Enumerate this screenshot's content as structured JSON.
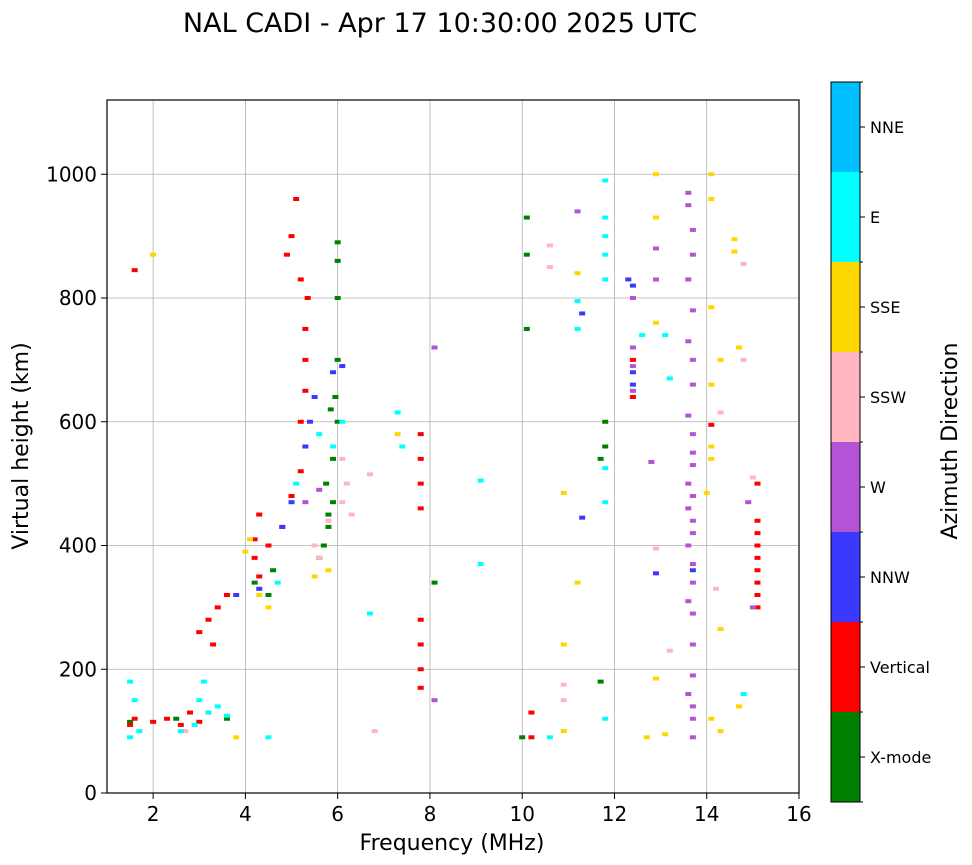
{
  "chart_data": {
    "type": "scatter",
    "title": "NAL CADI - Apr 17 10:30:00 2025 UTC",
    "xlabel": "Frequency (MHz)",
    "ylabel": "Virtual height (km)",
    "xlim": [
      1.0,
      16.0
    ],
    "ylim": [
      0,
      1120
    ],
    "xticks": [
      2,
      4,
      6,
      8,
      10,
      12,
      14,
      16
    ],
    "yticks": [
      0,
      200,
      400,
      600,
      800,
      1000
    ],
    "grid": true,
    "colorbar": {
      "label": "Azimuth Direction",
      "categories": [
        "X-mode",
        "Vertical",
        "NNW",
        "W",
        "SSW",
        "SSE",
        "E",
        "NNE"
      ],
      "colors": {
        "X-mode": "#008000",
        "Vertical": "#ff0000",
        "NNW": "#3a3aff",
        "W": "#b553d6",
        "SSW": "#ffb6c1",
        "SSE": "#ffd700",
        "E": "#00ffff",
        "NNE": "#00bfff"
      }
    },
    "series": [
      {
        "name": "X-mode",
        "points": [
          [
            5.8,
            430
          ],
          [
            5.9,
            470
          ],
          [
            5.7,
            400
          ],
          [
            5.9,
            540
          ],
          [
            6.0,
            600
          ],
          [
            5.95,
            640
          ],
          [
            6.0,
            700
          ],
          [
            6.0,
            800
          ],
          [
            5.85,
            620
          ],
          [
            5.6,
            380
          ],
          [
            5.8,
            450
          ],
          [
            5.75,
            500
          ],
          [
            10.1,
            930
          ],
          [
            10.1,
            870
          ],
          [
            10.1,
            750
          ],
          [
            10.0,
            90
          ],
          [
            11.8,
            560
          ],
          [
            11.8,
            600
          ],
          [
            11.7,
            540
          ],
          [
            11.7,
            180
          ],
          [
            8.1,
            340
          ],
          [
            6.0,
            860
          ],
          [
            6.0,
            890
          ],
          [
            4.2,
            340
          ],
          [
            4.6,
            360
          ],
          [
            4.5,
            320
          ],
          [
            3.6,
            120
          ],
          [
            2.5,
            120
          ],
          [
            1.5,
            115
          ]
        ]
      },
      {
        "name": "Vertical",
        "points": [
          [
            1.5,
            110
          ],
          [
            1.6,
            120
          ],
          [
            2.0,
            115
          ],
          [
            2.3,
            120
          ],
          [
            2.6,
            110
          ],
          [
            2.8,
            130
          ],
          [
            3.0,
            115
          ],
          [
            3.2,
            130
          ],
          [
            3.0,
            260
          ],
          [
            3.2,
            280
          ],
          [
            3.3,
            240
          ],
          [
            3.4,
            300
          ],
          [
            3.6,
            320
          ],
          [
            4.2,
            410
          ],
          [
            4.3,
            450
          ],
          [
            4.5,
            400
          ],
          [
            4.8,
            430
          ],
          [
            5.0,
            480
          ],
          [
            5.2,
            520
          ],
          [
            5.2,
            600
          ],
          [
            5.3,
            650
          ],
          [
            5.3,
            700
          ],
          [
            5.3,
            750
          ],
          [
            5.35,
            800
          ],
          [
            5.2,
            830
          ],
          [
            5.0,
            900
          ],
          [
            4.9,
            870
          ],
          [
            5.1,
            960
          ],
          [
            7.8,
            580
          ],
          [
            7.8,
            540
          ],
          [
            7.8,
            500
          ],
          [
            7.8,
            460
          ],
          [
            7.8,
            280
          ],
          [
            7.8,
            240
          ],
          [
            7.8,
            200
          ],
          [
            7.8,
            170
          ],
          [
            14.1,
            595
          ],
          [
            15.1,
            300
          ],
          [
            15.1,
            320
          ],
          [
            15.1,
            340
          ],
          [
            15.1,
            360
          ],
          [
            15.1,
            380
          ],
          [
            15.1,
            400
          ],
          [
            15.1,
            420
          ],
          [
            15.1,
            440
          ],
          [
            15.1,
            500
          ],
          [
            12.4,
            700
          ],
          [
            12.4,
            640
          ],
          [
            1.6,
            845
          ],
          [
            10.2,
            130
          ],
          [
            10.2,
            90
          ],
          [
            4.2,
            380
          ],
          [
            4.3,
            350
          ]
        ]
      },
      {
        "name": "NNW",
        "points": [
          [
            5.5,
            640
          ],
          [
            5.4,
            600
          ],
          [
            5.3,
            560
          ],
          [
            5.0,
            470
          ],
          [
            4.8,
            430
          ],
          [
            5.9,
            680
          ],
          [
            6.1,
            690
          ],
          [
            12.4,
            680
          ],
          [
            12.4,
            660
          ],
          [
            12.4,
            820
          ],
          [
            12.3,
            830
          ],
          [
            11.3,
            445
          ],
          [
            11.3,
            775
          ],
          [
            12.9,
            355
          ],
          [
            13.7,
            360
          ],
          [
            3.8,
            320
          ],
          [
            4.3,
            330
          ]
        ]
      },
      {
        "name": "W",
        "points": [
          [
            5.6,
            490
          ],
          [
            5.3,
            470
          ],
          [
            12.4,
            800
          ],
          [
            12.4,
            720
          ],
          [
            12.4,
            690
          ],
          [
            12.4,
            650
          ],
          [
            13.6,
            970
          ],
          [
            13.6,
            950
          ],
          [
            13.7,
            910
          ],
          [
            13.7,
            870
          ],
          [
            13.6,
            830
          ],
          [
            13.7,
            780
          ],
          [
            13.6,
            730
          ],
          [
            13.7,
            700
          ],
          [
            13.7,
            660
          ],
          [
            13.6,
            610
          ],
          [
            13.7,
            580
          ],
          [
            13.7,
            550
          ],
          [
            13.7,
            530
          ],
          [
            13.6,
            500
          ],
          [
            13.7,
            480
          ],
          [
            13.6,
            460
          ],
          [
            13.7,
            440
          ],
          [
            13.7,
            420
          ],
          [
            13.6,
            400
          ],
          [
            13.7,
            370
          ],
          [
            13.7,
            340
          ],
          [
            13.6,
            310
          ],
          [
            13.7,
            290
          ],
          [
            13.7,
            240
          ],
          [
            13.7,
            190
          ],
          [
            13.6,
            160
          ],
          [
            13.7,
            140
          ],
          [
            13.7,
            120
          ],
          [
            13.7,
            90
          ],
          [
            12.9,
            880
          ],
          [
            12.9,
            830
          ],
          [
            12.8,
            535
          ],
          [
            11.2,
            940
          ],
          [
            8.1,
            720
          ],
          [
            8.1,
            150
          ],
          [
            14.9,
            470
          ],
          [
            15.0,
            300
          ]
        ]
      },
      {
        "name": "SSW",
        "points": [
          [
            5.6,
            380
          ],
          [
            5.5,
            400
          ],
          [
            5.8,
            440
          ],
          [
            6.1,
            470
          ],
          [
            6.3,
            450
          ],
          [
            6.2,
            500
          ],
          [
            6.1,
            540
          ],
          [
            6.7,
            515
          ],
          [
            10.6,
            885
          ],
          [
            10.6,
            850
          ],
          [
            12.9,
            395
          ],
          [
            13.2,
            230
          ],
          [
            14.2,
            330
          ],
          [
            14.3,
            615
          ],
          [
            14.8,
            855
          ],
          [
            14.8,
            700
          ],
          [
            15.0,
            510
          ],
          [
            10.9,
            175
          ],
          [
            10.9,
            150
          ],
          [
            2.7,
            100
          ],
          [
            6.8,
            100
          ]
        ]
      },
      {
        "name": "SSE",
        "points": [
          [
            5.5,
            350
          ],
          [
            5.8,
            360
          ],
          [
            4.3,
            320
          ],
          [
            4.5,
            300
          ],
          [
            4.1,
            410
          ],
          [
            4.0,
            390
          ],
          [
            12.9,
            1000
          ],
          [
            12.9,
            930
          ],
          [
            12.9,
            760
          ],
          [
            13.2,
            670
          ],
          [
            14.1,
            1000
          ],
          [
            14.1,
            960
          ],
          [
            14.1,
            785
          ],
          [
            14.1,
            660
          ],
          [
            14.0,
            485
          ],
          [
            14.1,
            560
          ],
          [
            14.1,
            540
          ],
          [
            14.3,
            700
          ],
          [
            14.6,
            895
          ],
          [
            14.6,
            875
          ],
          [
            14.7,
            720
          ],
          [
            11.2,
            840
          ],
          [
            11.2,
            340
          ],
          [
            10.9,
            485
          ],
          [
            10.9,
            240
          ],
          [
            12.9,
            185
          ],
          [
            12.7,
            90
          ],
          [
            13.1,
            95
          ],
          [
            14.1,
            120
          ],
          [
            14.3,
            100
          ],
          [
            14.7,
            140
          ],
          [
            14.3,
            265
          ],
          [
            7.3,
            580
          ],
          [
            3.8,
            90
          ],
          [
            2.0,
            870
          ],
          [
            10.9,
            100
          ]
        ]
      },
      {
        "name": "E",
        "points": [
          [
            1.5,
            180
          ],
          [
            1.6,
            150
          ],
          [
            1.7,
            100
          ],
          [
            1.5,
            90
          ],
          [
            3.0,
            150
          ],
          [
            3.2,
            130
          ],
          [
            3.4,
            140
          ],
          [
            3.6,
            125
          ],
          [
            3.1,
            180
          ],
          [
            2.9,
            110
          ],
          [
            2.6,
            100
          ],
          [
            4.5,
            90
          ],
          [
            5.6,
            580
          ],
          [
            5.9,
            560
          ],
          [
            6.1,
            600
          ],
          [
            7.3,
            615
          ],
          [
            7.4,
            560
          ],
          [
            6.7,
            290
          ],
          [
            9.1,
            505
          ],
          [
            9.1,
            370
          ],
          [
            10.6,
            90
          ],
          [
            11.2,
            795
          ],
          [
            11.2,
            750
          ],
          [
            11.8,
            990
          ],
          [
            11.8,
            930
          ],
          [
            11.8,
            900
          ],
          [
            11.8,
            870
          ],
          [
            11.8,
            830
          ],
          [
            11.8,
            525
          ],
          [
            11.8,
            470
          ],
          [
            11.8,
            120
          ],
          [
            12.6,
            740
          ],
          [
            13.1,
            740
          ],
          [
            13.2,
            670
          ],
          [
            14.8,
            160
          ],
          [
            4.7,
            340
          ],
          [
            5.1,
            500
          ]
        ]
      },
      {
        "name": "NNE",
        "points": []
      }
    ]
  }
}
